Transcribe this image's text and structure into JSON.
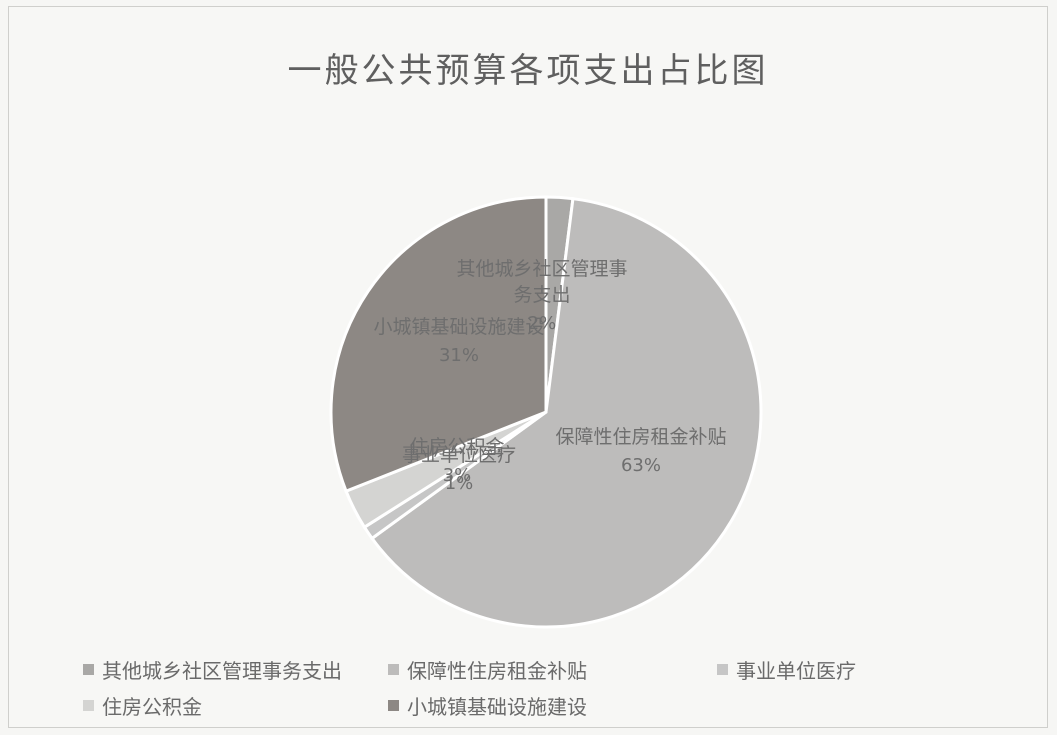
{
  "chart_data": {
    "type": "pie",
    "title": "一般公共预算各项支出占比图",
    "slices": [
      {
        "label": "其他城乡社区管理事务支出",
        "display_label": "其他城乡社区管理事务支出",
        "percent_label": "2%",
        "value": 2,
        "color": "#a9a8a6"
      },
      {
        "label": "保障性住房租金补贴",
        "display_label": "保障性住房租金补贴",
        "percent_label": "63%",
        "value": 63,
        "color": "#bdbcbb"
      },
      {
        "label": "事业单位医疗",
        "display_label": "事业单位医疗",
        "percent_label": "1%",
        "value": 1,
        "color": "#c6c6c6"
      },
      {
        "label": "住房公积金",
        "display_label": "住房公积金",
        "percent_label": "3%",
        "value": 3,
        "color": "#d4d4d2"
      },
      {
        "label": "小城镇基础设施建设",
        "display_label": "小城镇基础设施建设",
        "percent_label": "31%",
        "value": 31,
        "color": "#8d8884"
      }
    ],
    "legend_position": "bottom"
  }
}
